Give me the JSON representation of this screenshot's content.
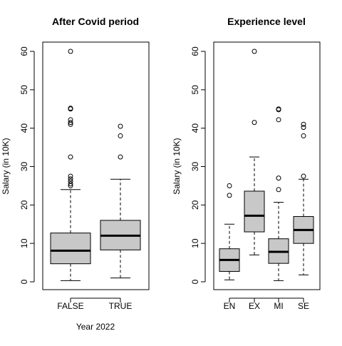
{
  "chart_data": [
    {
      "type": "box",
      "title": "After Covid period",
      "xlabel": "Year 2022",
      "ylabel": "Salary (in 10K)",
      "ylim": [
        0,
        60
      ],
      "yticks": [
        0,
        10,
        20,
        30,
        40,
        50,
        60
      ],
      "box_color": "#c8c8c8",
      "categories": [
        "FALSE",
        "TRUE"
      ],
      "boxes": [
        {
          "category": "FALSE",
          "whisker_low": 0.3,
          "q1": 4.7,
          "median": 8.1,
          "q3": 12.7,
          "whisker_high": 24.0,
          "outliers": [
            25.0,
            25.5,
            26.2,
            26.8,
            27.5,
            32.5,
            41.0,
            41.5,
            42.2,
            45.0,
            45.2,
            60.0
          ]
        },
        {
          "category": "TRUE",
          "whisker_low": 1.0,
          "q1": 8.3,
          "median": 12.0,
          "q3": 16.0,
          "whisker_high": 26.7,
          "outliers": [
            32.5,
            38.0,
            40.5
          ]
        }
      ]
    },
    {
      "type": "box",
      "title": "Experience level",
      "xlabel": "",
      "ylabel": "Salary (in 10K)",
      "ylim": [
        0,
        60
      ],
      "yticks": [
        0,
        10,
        20,
        30,
        40,
        50,
        60
      ],
      "box_color": "#c8c8c8",
      "categories": [
        "EN",
        "EX",
        "MI",
        "SE"
      ],
      "boxes": [
        {
          "category": "EN",
          "whisker_low": 0.5,
          "q1": 2.7,
          "median": 5.7,
          "q3": 8.6,
          "whisker_high": 15.0,
          "outliers": [
            22.5,
            25.0
          ]
        },
        {
          "category": "EX",
          "whisker_low": 7.0,
          "q1": 13.0,
          "median": 17.2,
          "q3": 23.6,
          "whisker_high": 32.5,
          "outliers": [
            41.5,
            60.0
          ]
        },
        {
          "category": "MI",
          "whisker_low": 0.3,
          "q1": 4.8,
          "median": 7.8,
          "q3": 11.2,
          "whisker_high": 20.7,
          "outliers": [
            24.0,
            27.0,
            42.2,
            44.8,
            45.0
          ]
        },
        {
          "category": "SE",
          "whisker_low": 1.8,
          "q1": 10.0,
          "median": 13.5,
          "q3": 17.0,
          "whisker_high": 26.7,
          "outliers": [
            27.5,
            38.0,
            40.2,
            41.0
          ]
        }
      ]
    }
  ]
}
